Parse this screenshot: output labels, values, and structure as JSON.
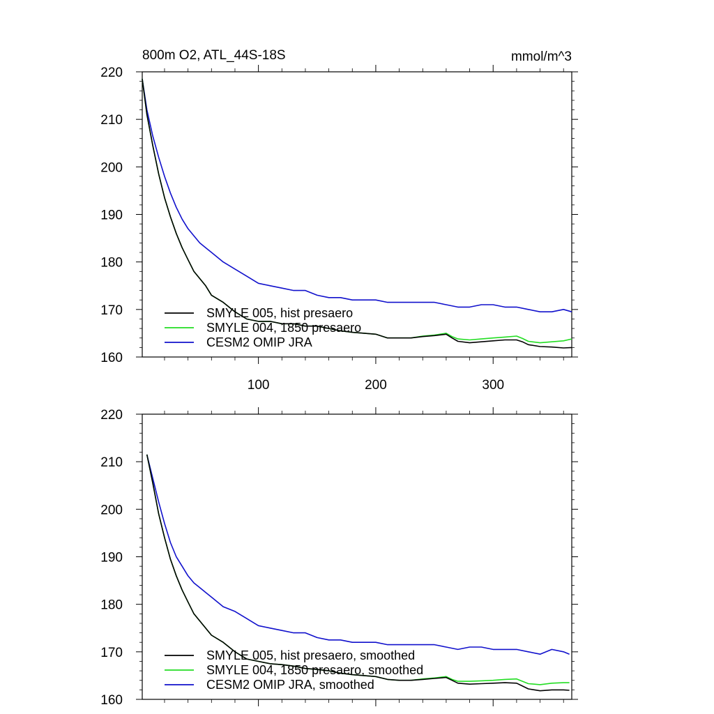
{
  "chart_data": [
    {
      "type": "line",
      "title": "800m O2, ATL_44S-18S",
      "units": "mmol/m^3",
      "xlim": [
        1,
        367
      ],
      "ylim": [
        160,
        220
      ],
      "yticks": [
        160,
        170,
        180,
        190,
        200,
        210,
        220
      ],
      "xticks": [
        100,
        200,
        300
      ],
      "show_xtick_labels": true,
      "legend_position": "bottom-left",
      "series": [
        {
          "name": "SMYLE 005, hist presaero",
          "color": "#000000",
          "x": [
            1,
            5,
            10,
            15,
            20,
            25,
            30,
            35,
            40,
            45,
            50,
            55,
            60,
            70,
            80,
            90,
            100,
            110,
            120,
            130,
            140,
            150,
            160,
            170,
            180,
            190,
            200,
            210,
            220,
            230,
            240,
            250,
            260,
            265,
            270,
            280,
            290,
            300,
            310,
            320,
            325,
            330,
            340,
            350,
            360,
            367
          ],
          "y": [
            218.5,
            211,
            204.5,
            198.5,
            193.5,
            189.5,
            186,
            183,
            180.5,
            178,
            176.5,
            175,
            173,
            171.5,
            169.5,
            168,
            167.5,
            167.5,
            167,
            167,
            166.5,
            166.5,
            166,
            165.5,
            165.2,
            165,
            164.8,
            164,
            164,
            164,
            164.3,
            164.5,
            164.8,
            164,
            163.3,
            163,
            163.2,
            163.4,
            163.6,
            163.6,
            163.2,
            162.6,
            162.2,
            162.1,
            161.9,
            162
          ]
        },
        {
          "name": "SMYLE 004, 1850 presaero",
          "color": "#22dd22",
          "x": [
            1,
            5,
            10,
            15,
            20,
            25,
            30,
            35,
            40,
            45,
            50,
            55,
            60,
            70,
            80,
            90,
            100,
            110,
            120,
            130,
            140,
            150,
            160,
            170,
            180,
            190,
            200,
            210,
            220,
            230,
            240,
            250,
            260,
            265,
            270,
            280,
            290,
            300,
            310,
            320,
            325,
            330,
            340,
            350,
            360,
            367
          ],
          "y": [
            218.5,
            211,
            204.5,
            198.5,
            193.5,
            189.5,
            186,
            183,
            180.5,
            178,
            176.5,
            175,
            173,
            171.5,
            169.5,
            168,
            167.5,
            167.5,
            167,
            167,
            166.5,
            166.5,
            166,
            165.5,
            165.2,
            165,
            164.8,
            164,
            164,
            164,
            164.4,
            164.6,
            165,
            164.3,
            163.8,
            163.6,
            163.8,
            164,
            164.2,
            164.4,
            163.9,
            163.3,
            163,
            163.2,
            163.4,
            163.8
          ]
        },
        {
          "name": "CESM2 OMIP JRA",
          "color": "#1010cc",
          "x": [
            1,
            5,
            10,
            15,
            20,
            25,
            30,
            35,
            40,
            45,
            50,
            55,
            60,
            70,
            80,
            90,
            100,
            110,
            120,
            130,
            140,
            150,
            160,
            170,
            180,
            190,
            200,
            210,
            220,
            230,
            240,
            250,
            260,
            270,
            280,
            290,
            300,
            310,
            320,
            330,
            340,
            350,
            360,
            367
          ],
          "y": [
            218.5,
            212,
            206.5,
            202,
            198,
            194.5,
            191.5,
            189,
            187,
            185.5,
            184,
            183,
            182,
            180,
            178.5,
            177,
            175.5,
            175,
            174.5,
            174,
            174,
            173,
            172.5,
            172.5,
            172,
            172,
            172,
            171.5,
            171.5,
            171.5,
            171.5,
            171.5,
            171,
            170.5,
            170.5,
            171,
            171,
            170.5,
            170.5,
            170,
            169.5,
            169.5,
            170,
            169.5
          ]
        }
      ]
    },
    {
      "type": "line",
      "title": "",
      "units": "",
      "xlim": [
        1,
        367
      ],
      "ylim": [
        160,
        220
      ],
      "yticks": [
        160,
        170,
        180,
        190,
        200,
        210,
        220
      ],
      "xticks": [
        100,
        200,
        300
      ],
      "show_xtick_labels": false,
      "legend_position": "bottom-left",
      "series": [
        {
          "name": "SMYLE 005, hist presaero, smoothed",
          "color": "#000000",
          "x": [
            5,
            10,
            15,
            20,
            25,
            30,
            35,
            40,
            45,
            50,
            55,
            60,
            70,
            80,
            90,
            100,
            110,
            120,
            130,
            140,
            150,
            160,
            170,
            180,
            190,
            200,
            210,
            220,
            230,
            240,
            250,
            260,
            265,
            270,
            280,
            290,
            300,
            310,
            320,
            325,
            330,
            340,
            350,
            360,
            365
          ],
          "y": [
            211.5,
            205.5,
            199,
            194,
            189.5,
            186,
            183,
            180.5,
            178,
            176.5,
            175,
            173.5,
            172,
            170,
            168.5,
            168,
            167.5,
            167.3,
            167,
            166.5,
            166.3,
            166,
            165.5,
            165.2,
            165,
            164.8,
            164.2,
            164,
            164,
            164.2,
            164.4,
            164.6,
            164,
            163.4,
            163.2,
            163.3,
            163.4,
            163.5,
            163.4,
            162.8,
            162.2,
            161.8,
            162,
            162,
            161.9
          ]
        },
        {
          "name": "SMYLE 004, 1850 presaero, smoothed",
          "color": "#22dd22",
          "x": [
            5,
            10,
            15,
            20,
            25,
            30,
            35,
            40,
            45,
            50,
            55,
            60,
            70,
            80,
            90,
            100,
            110,
            120,
            130,
            140,
            150,
            160,
            170,
            180,
            190,
            200,
            210,
            220,
            230,
            240,
            250,
            260,
            265,
            270,
            280,
            290,
            300,
            310,
            320,
            325,
            330,
            340,
            350,
            360,
            365
          ],
          "y": [
            211.5,
            205.5,
            199,
            194,
            189.5,
            186,
            183,
            180.5,
            178,
            176.5,
            175,
            173.5,
            172,
            170,
            168.5,
            168,
            167.5,
            167.3,
            167,
            166.5,
            166.3,
            166,
            165.5,
            165.2,
            165,
            164.8,
            164.2,
            164,
            164,
            164.3,
            164.5,
            164.8,
            164.2,
            163.8,
            163.8,
            163.9,
            164,
            164.2,
            164.3,
            163.8,
            163.3,
            163.1,
            163.4,
            163.5,
            163.5
          ]
        },
        {
          "name": "CESM2 OMIP JRA, smoothed",
          "color": "#1010cc",
          "x": [
            5,
            10,
            15,
            20,
            25,
            30,
            35,
            40,
            45,
            50,
            55,
            60,
            70,
            80,
            90,
            100,
            110,
            120,
            130,
            140,
            150,
            160,
            170,
            180,
            190,
            200,
            210,
            220,
            230,
            240,
            250,
            260,
            270,
            280,
            290,
            300,
            310,
            320,
            330,
            340,
            350,
            360,
            365
          ],
          "y": [
            211.5,
            206.5,
            201.5,
            197,
            193,
            190,
            188,
            186,
            184.5,
            183.5,
            182.5,
            181.5,
            179.5,
            178.5,
            177,
            175.5,
            175,
            174.5,
            174,
            174,
            173,
            172.5,
            172.5,
            172,
            172,
            172,
            171.5,
            171.5,
            171.5,
            171.5,
            171.5,
            171,
            170.5,
            171,
            171,
            170.5,
            170.5,
            170.5,
            170,
            169.5,
            170.5,
            170,
            169.5
          ]
        }
      ]
    }
  ]
}
